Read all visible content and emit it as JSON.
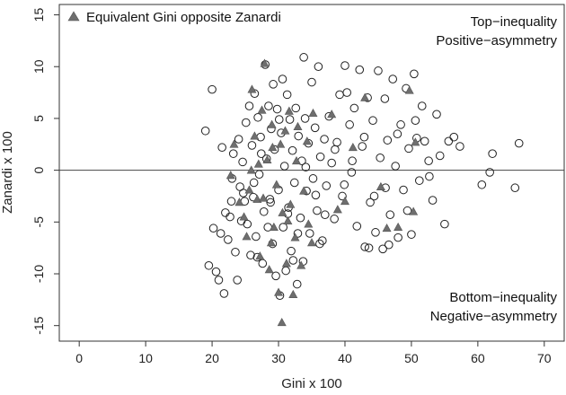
{
  "chart_data": {
    "type": "scatter",
    "xlabel": "Gini x 100",
    "ylabel": "Zanardi x 100",
    "xlim": [
      -3,
      73
    ],
    "ylim": [
      -16.5,
      16
    ],
    "xticks": [
      "0",
      "10",
      "20",
      "30",
      "40",
      "50",
      "60",
      "70"
    ],
    "yticks": [
      "-15",
      "-10",
      "-5",
      "0",
      "5",
      "10",
      "15"
    ],
    "xtick_values": [
      0,
      10,
      20,
      30,
      40,
      50,
      60,
      70
    ],
    "ytick_values": [
      -15,
      -10,
      -5,
      0,
      5,
      10,
      15
    ],
    "reference_line_y": 0,
    "legend": {
      "placement": "top-left",
      "entries": [
        "Equivalent Gini opposite Zanardi"
      ]
    },
    "annotations": {
      "top": [
        "Top−inequality",
        "Positive−asymmetry"
      ],
      "bottom": [
        "Bottom−inequality",
        "Negative−asymmetry"
      ]
    },
    "series": [
      {
        "marker": "open-circle",
        "points": [
          [
            19.0,
            3.8
          ],
          [
            19.5,
            -9.2
          ],
          [
            20.0,
            7.8
          ],
          [
            20.2,
            -5.6
          ],
          [
            20.6,
            -9.8
          ],
          [
            21.0,
            -10.6
          ],
          [
            21.3,
            -6.1
          ],
          [
            21.5,
            2.2
          ],
          [
            21.8,
            -11.9
          ],
          [
            22.0,
            -4.1
          ],
          [
            22.4,
            -6.7
          ],
          [
            22.7,
            -4.5
          ],
          [
            23.0,
            -0.8
          ],
          [
            23.2,
            1.6
          ],
          [
            23.5,
            -7.9
          ],
          [
            23.8,
            -10.6
          ],
          [
            24.0,
            3.0
          ],
          [
            24.2,
            -1.6
          ],
          [
            24.6,
            0.8
          ],
          [
            24.9,
            -3.0
          ],
          [
            25.1,
            4.6
          ],
          [
            25.3,
            -5.2
          ],
          [
            25.6,
            6.2
          ],
          [
            25.8,
            -8.2
          ],
          [
            26.0,
            2.4
          ],
          [
            26.2,
            -2.6
          ],
          [
            26.4,
            7.4
          ],
          [
            26.6,
            -6.4
          ],
          [
            26.9,
            5.1
          ],
          [
            27.1,
            -0.4
          ],
          [
            27.3,
            3.2
          ],
          [
            27.6,
            -9.0
          ],
          [
            27.8,
            -4.0
          ],
          [
            28.0,
            10.2
          ],
          [
            28.2,
            1.1
          ],
          [
            28.5,
            6.2
          ],
          [
            28.7,
            -2.8
          ],
          [
            28.9,
            4.0
          ],
          [
            29.1,
            -7.1
          ],
          [
            29.4,
            2.0
          ],
          [
            29.6,
            -10.2
          ],
          [
            29.8,
            5.9
          ],
          [
            30.0,
            -1.9
          ],
          [
            30.2,
            -12.1
          ],
          [
            30.4,
            3.6
          ],
          [
            30.7,
            -5.5
          ],
          [
            30.9,
            0.4
          ],
          [
            31.1,
            -9.7
          ],
          [
            31.3,
            7.3
          ],
          [
            31.5,
            -3.6
          ],
          [
            31.7,
            4.9
          ],
          [
            31.9,
            -7.8
          ],
          [
            32.1,
            1.9
          ],
          [
            32.4,
            -1.2
          ],
          [
            32.6,
            6.0
          ],
          [
            32.8,
            -11.0
          ],
          [
            33.0,
            3.3
          ],
          [
            33.3,
            -4.6
          ],
          [
            33.5,
            0.9
          ],
          [
            33.7,
            -8.8
          ],
          [
            34.0,
            5.0
          ],
          [
            34.2,
            -2.0
          ],
          [
            34.5,
            2.6
          ],
          [
            34.7,
            -6.1
          ],
          [
            35.0,
            8.5
          ],
          [
            35.2,
            -0.8
          ],
          [
            35.5,
            4.1
          ],
          [
            35.8,
            -3.9
          ],
          [
            36.0,
            10.0
          ],
          [
            36.3,
            1.3
          ],
          [
            36.6,
            -6.8
          ],
          [
            36.9,
            3.0
          ],
          [
            37.2,
            -1.5
          ],
          [
            37.6,
            5.2
          ],
          [
            38.0,
            0.7
          ],
          [
            38.4,
            -4.7
          ],
          [
            38.8,
            2.7
          ],
          [
            39.2,
            7.3
          ],
          [
            39.6,
            -2.5
          ],
          [
            40.0,
            10.1
          ],
          [
            40.3,
            7.5
          ],
          [
            40.7,
            4.4
          ],
          [
            41.0,
            -0.2
          ],
          [
            41.4,
            6.0
          ],
          [
            41.8,
            -5.4
          ],
          [
            42.2,
            9.7
          ],
          [
            42.6,
            2.3
          ],
          [
            43.0,
            -7.4
          ],
          [
            43.4,
            7.0
          ],
          [
            43.8,
            -3.1
          ],
          [
            44.2,
            4.8
          ],
          [
            44.6,
            -6.0
          ],
          [
            45.0,
            9.6
          ],
          [
            45.3,
            1.2
          ],
          [
            45.7,
            -7.6
          ],
          [
            46.0,
            6.9
          ],
          [
            46.4,
            2.9
          ],
          [
            46.8,
            -4.3
          ],
          [
            47.2,
            8.8
          ],
          [
            47.6,
            0.4
          ],
          [
            48.0,
            -6.5
          ],
          [
            48.4,
            4.4
          ],
          [
            48.8,
            -1.9
          ],
          [
            49.2,
            7.9
          ],
          [
            49.6,
            2.1
          ],
          [
            50.0,
            -6.2
          ],
          [
            50.4,
            9.3
          ],
          [
            50.8,
            3.1
          ],
          [
            51.2,
            -1.0
          ],
          [
            51.6,
            6.2
          ],
          [
            52.0,
            2.8
          ],
          [
            52.6,
            0.9
          ],
          [
            53.2,
            -2.9
          ],
          [
            53.8,
            5.4
          ],
          [
            54.3,
            1.4
          ],
          [
            55.0,
            -5.2
          ],
          [
            55.6,
            2.8
          ],
          [
            56.4,
            3.2
          ],
          [
            57.3,
            2.3
          ],
          [
            60.6,
            -1.4
          ],
          [
            61.8,
            -0.2
          ],
          [
            62.2,
            1.6
          ],
          [
            65.6,
            -1.7
          ],
          [
            66.2,
            2.6
          ],
          [
            22.9,
            -3.0
          ],
          [
            24.4,
            -4.9
          ],
          [
            26.3,
            -1.2
          ],
          [
            27.4,
            1.6
          ],
          [
            28.8,
            -3.1
          ],
          [
            30.1,
            4.9
          ],
          [
            31.4,
            -4.2
          ],
          [
            32.9,
            -6.1
          ],
          [
            34.1,
            0.3
          ],
          [
            35.6,
            -2.4
          ],
          [
            37.0,
            -4.3
          ],
          [
            38.5,
            2.0
          ],
          [
            39.9,
            -1.4
          ],
          [
            41.1,
            0.9
          ],
          [
            42.9,
            3.2
          ],
          [
            44.4,
            -2.5
          ],
          [
            46.1,
            -1.7
          ],
          [
            47.9,
            3.5
          ],
          [
            49.4,
            -3.9
          ],
          [
            50.6,
            4.8
          ],
          [
            52.7,
            -0.6
          ],
          [
            24.7,
            -2.2
          ],
          [
            28.4,
            -5.5
          ],
          [
            32.2,
            -8.7
          ],
          [
            36.2,
            -7.1
          ],
          [
            26.8,
            -8.4
          ],
          [
            30.6,
            8.8
          ],
          [
            33.8,
            10.9
          ],
          [
            29.2,
            8.3
          ],
          [
            43.6,
            -7.5
          ],
          [
            46.6,
            -7.2
          ]
        ]
      },
      {
        "name": "Equivalent Gini opposite Zanardi",
        "marker": "filled-triangle",
        "points": [
          [
            22.8,
            -0.5
          ],
          [
            23.3,
            2.5
          ],
          [
            24.1,
            -3.1
          ],
          [
            24.8,
            -4.5
          ],
          [
            25.2,
            -6.4
          ],
          [
            25.9,
            0.0
          ],
          [
            26.0,
            7.8
          ],
          [
            26.4,
            3.3
          ],
          [
            26.8,
            -2.8
          ],
          [
            27.2,
            -8.3
          ],
          [
            27.5,
            5.8
          ],
          [
            27.9,
            10.3
          ],
          [
            28.3,
            1.0
          ],
          [
            28.6,
            -9.6
          ],
          [
            29.0,
            4.4
          ],
          [
            29.3,
            -5.5
          ],
          [
            29.7,
            -1.4
          ],
          [
            30.0,
            -11.8
          ],
          [
            30.3,
            2.5
          ],
          [
            30.5,
            -14.7
          ],
          [
            30.6,
            -4.1
          ],
          [
            31.0,
            3.8
          ],
          [
            31.2,
            -9.0
          ],
          [
            31.6,
            5.7
          ],
          [
            31.8,
            -3.3
          ],
          [
            32.2,
            -12.0
          ],
          [
            32.5,
            -6.5
          ],
          [
            32.9,
            4.2
          ],
          [
            33.4,
            -9.2
          ],
          [
            33.8,
            -2.0
          ],
          [
            34.3,
            2.8
          ],
          [
            35.2,
            5.5
          ],
          [
            35.0,
            -7.0
          ],
          [
            38.0,
            5.4
          ],
          [
            38.9,
            -3.8
          ],
          [
            40.0,
            -3.0
          ],
          [
            41.2,
            2.2
          ],
          [
            43.0,
            7.0
          ],
          [
            45.4,
            -1.6
          ],
          [
            46.3,
            -5.6
          ],
          [
            48.0,
            -5.5
          ],
          [
            49.7,
            7.7
          ],
          [
            50.3,
            -4.0
          ],
          [
            50.6,
            2.7
          ],
          [
            25.6,
            -1.9
          ],
          [
            27.0,
            0.6
          ],
          [
            28.9,
            -7.0
          ],
          [
            31.4,
            -4.9
          ],
          [
            32.7,
            0.9
          ],
          [
            34.5,
            -5.2
          ],
          [
            29.1,
            2.2
          ],
          [
            27.7,
            -2.7
          ]
        ]
      }
    ]
  }
}
